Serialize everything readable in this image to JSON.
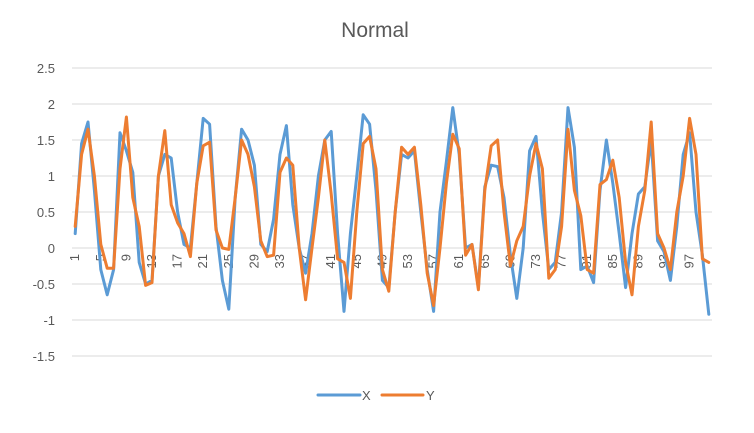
{
  "chart_data": {
    "type": "line",
    "title": "Normal",
    "xlabel": "",
    "ylabel": "",
    "ylim": [
      -1.5,
      2.5
    ],
    "yticks": [
      2.5,
      2,
      1.5,
      1,
      0.5,
      0,
      -0.5,
      -1,
      -1.5
    ],
    "ytick_labels": [
      "2.5",
      "2",
      "1.5",
      "1",
      "0.5",
      "0",
      "-0.5",
      "-1",
      "-1.5"
    ],
    "x": [
      1,
      2,
      3,
      4,
      5,
      6,
      7,
      8,
      9,
      10,
      11,
      12,
      13,
      14,
      15,
      16,
      17,
      18,
      19,
      20,
      21,
      22,
      23,
      24,
      25,
      26,
      27,
      28,
      29,
      30,
      31,
      32,
      33,
      34,
      35,
      36,
      37,
      38,
      39,
      40,
      41,
      42,
      43,
      44,
      45,
      46,
      47,
      48,
      49,
      50,
      51,
      52,
      53,
      54,
      55,
      56,
      57,
      58,
      59,
      60,
      61,
      62,
      63,
      64,
      65,
      66,
      67,
      68,
      69,
      70,
      71,
      72,
      73,
      74,
      75,
      76,
      77,
      78,
      79,
      80,
      81,
      82,
      83,
      84,
      85,
      86,
      87,
      88,
      89,
      90,
      91,
      92,
      93,
      94,
      95,
      96,
      97,
      98,
      99,
      100
    ],
    "xtick_labels": [
      "1",
      "5",
      "9",
      "13",
      "17",
      "21",
      "25",
      "29",
      "33",
      "37",
      "41",
      "45",
      "49",
      "53",
      "57",
      "61",
      "65",
      "69",
      "73",
      "77",
      "81",
      "85",
      "89",
      "93",
      "97"
    ],
    "grid": true,
    "legend_position": "bottom",
    "series": [
      {
        "name": "X",
        "color": "#5b9bd5",
        "values": [
          0.2,
          1.45,
          1.75,
          0.8,
          -0.3,
          -0.65,
          -0.3,
          1.6,
          1.35,
          1.05,
          -0.2,
          -0.5,
          -0.45,
          1.0,
          1.3,
          1.25,
          0.5,
          0.05,
          0.0,
          0.9,
          1.8,
          1.72,
          0.3,
          -0.45,
          -0.85,
          0.7,
          1.65,
          1.5,
          1.15,
          0.05,
          -0.05,
          0.4,
          1.3,
          1.7,
          0.6,
          0.0,
          -0.35,
          0.2,
          1.0,
          1.5,
          1.62,
          0.2,
          -0.88,
          0.2,
          1.0,
          1.85,
          1.72,
          0.8,
          -0.45,
          -0.55,
          0.5,
          1.3,
          1.25,
          1.35,
          0.5,
          -0.3,
          -0.88,
          0.5,
          1.2,
          1.95,
          1.3,
          0.0,
          0.05,
          -0.55,
          0.85,
          1.15,
          1.13,
          0.7,
          -0.1,
          -0.7,
          0.0,
          1.35,
          1.55,
          0.5,
          -0.3,
          -0.2,
          0.5,
          1.95,
          1.4,
          -0.3,
          -0.25,
          -0.48,
          0.8,
          1.5,
          0.9,
          0.2,
          -0.55,
          0.2,
          0.75,
          0.85,
          1.5,
          0.1,
          -0.05,
          -0.45,
          0.3,
          1.3,
          1.6,
          0.5,
          -0.1,
          -0.92
        ]
      },
      {
        "name": "Y",
        "color": "#ed7d31",
        "values": [
          0.3,
          1.3,
          1.65,
          1.0,
          0.05,
          -0.28,
          -0.28,
          1.1,
          1.82,
          0.7,
          0.3,
          -0.52,
          -0.48,
          1.0,
          1.63,
          0.6,
          0.35,
          0.2,
          -0.12,
          0.9,
          1.42,
          1.47,
          0.25,
          0.0,
          -0.02,
          0.7,
          1.5,
          1.3,
          0.85,
          0.1,
          -0.12,
          -0.1,
          1.05,
          1.25,
          1.15,
          0.0,
          -0.72,
          0.0,
          0.7,
          1.5,
          0.75,
          -0.15,
          -0.2,
          -0.7,
          0.5,
          1.45,
          1.55,
          1.1,
          -0.3,
          -0.6,
          0.5,
          1.4,
          1.3,
          1.4,
          0.6,
          -0.35,
          -0.8,
          0.0,
          0.9,
          1.58,
          1.38,
          -0.1,
          0.05,
          -0.58,
          0.8,
          1.42,
          1.5,
          0.5,
          -0.25,
          0.1,
          0.3,
          1.0,
          1.45,
          1.1,
          -0.42,
          -0.3,
          0.3,
          1.65,
          0.8,
          0.45,
          -0.3,
          -0.35,
          0.88,
          0.95,
          1.22,
          0.7,
          -0.2,
          -0.65,
          0.3,
          0.8,
          1.75,
          0.2,
          0.0,
          -0.3,
          0.5,
          1.0,
          1.8,
          1.3,
          -0.15,
          -0.2
        ]
      }
    ]
  }
}
